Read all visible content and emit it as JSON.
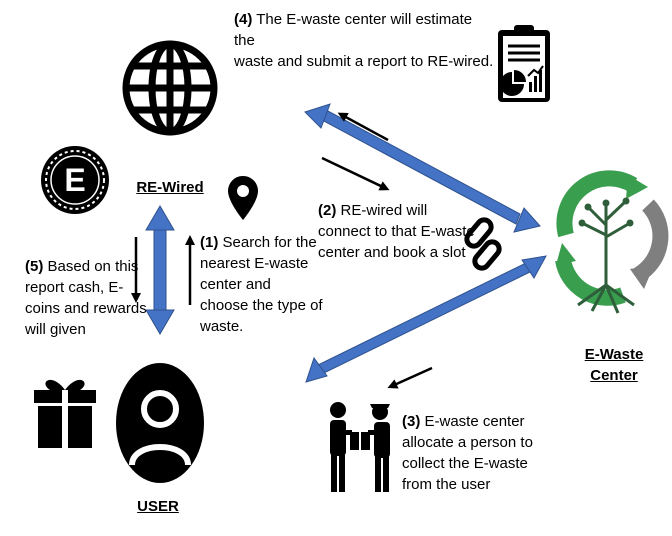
{
  "nodes": {
    "rewired_label": "RE-Wired",
    "user_label": "USER",
    "ewaste_label_line1": "E-Waste",
    "ewaste_label_line2": "Center",
    "emblem_letter": "E"
  },
  "steps": {
    "step1": {
      "num": "(1)",
      "text_first": " Search for the",
      "lines": [
        "nearest E-waste",
        "center and",
        "choose the type of",
        "waste."
      ]
    },
    "step2": {
      "num": "(2)",
      "text_first": " RE-wired will",
      "lines": [
        "connect to that E-waste",
        "center and book a slot"
      ]
    },
    "step3": {
      "num": "(3)",
      "text_first": " E-waste center",
      "lines": [
        "allocate a person to",
        "collect the E-waste",
        "from the user"
      ]
    },
    "step4": {
      "num": "(4)",
      "text_first": " The E-waste center will estimate the",
      "lines": [
        "waste and submit a report to RE-wired."
      ]
    },
    "step5": {
      "num": "(5)",
      "text_first": " Based on this",
      "lines": [
        "report cash, E-",
        "coins and rewards",
        "will given"
      ]
    }
  },
  "colors": {
    "arrow_blue": "#4472c4",
    "arrow_black": "#000000",
    "green": "#3a9e4f",
    "grey": "#7f7f7f"
  }
}
